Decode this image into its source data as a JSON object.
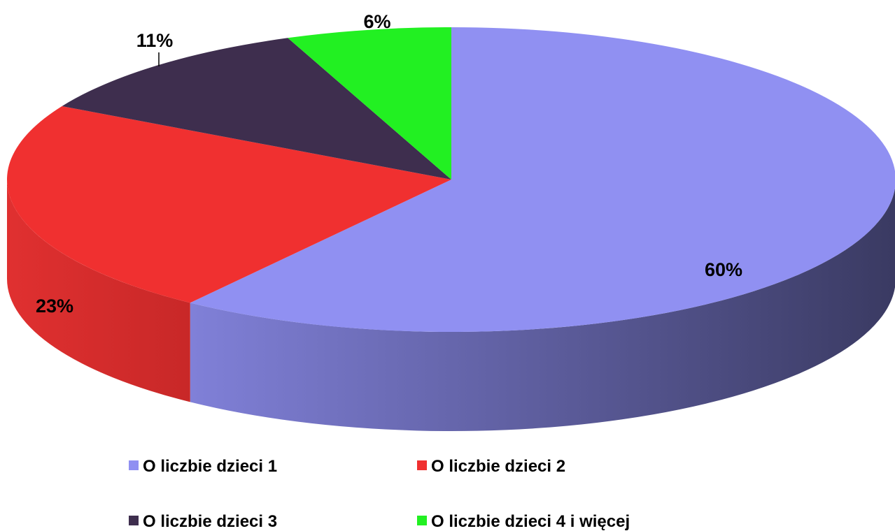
{
  "chart_data": {
    "type": "pie",
    "style": "3d",
    "title": "",
    "categories": [
      "O liczbie dzieci 1",
      "O liczbie dzieci 2",
      "O liczbie dzieci 3",
      "O liczbie dzieci 4 i więcej"
    ],
    "values": [
      60,
      23,
      11,
      6
    ],
    "data_labels": [
      "60%",
      "23%",
      "11%",
      "6%"
    ],
    "colors": [
      "#9090f2",
      "#f03030",
      "#3e2e4e",
      "#22f022"
    ],
    "side_colors": [
      "#5a5aa8",
      "#d02828",
      "#2a2036",
      "#18b018"
    ],
    "legend": {
      "placement": "bottom",
      "entries": [
        "O liczbie dzieci 1",
        "O liczbie dzieci 2",
        "O liczbie dzieci 3",
        "O liczbie dzieci 4 i więcej"
      ]
    }
  }
}
